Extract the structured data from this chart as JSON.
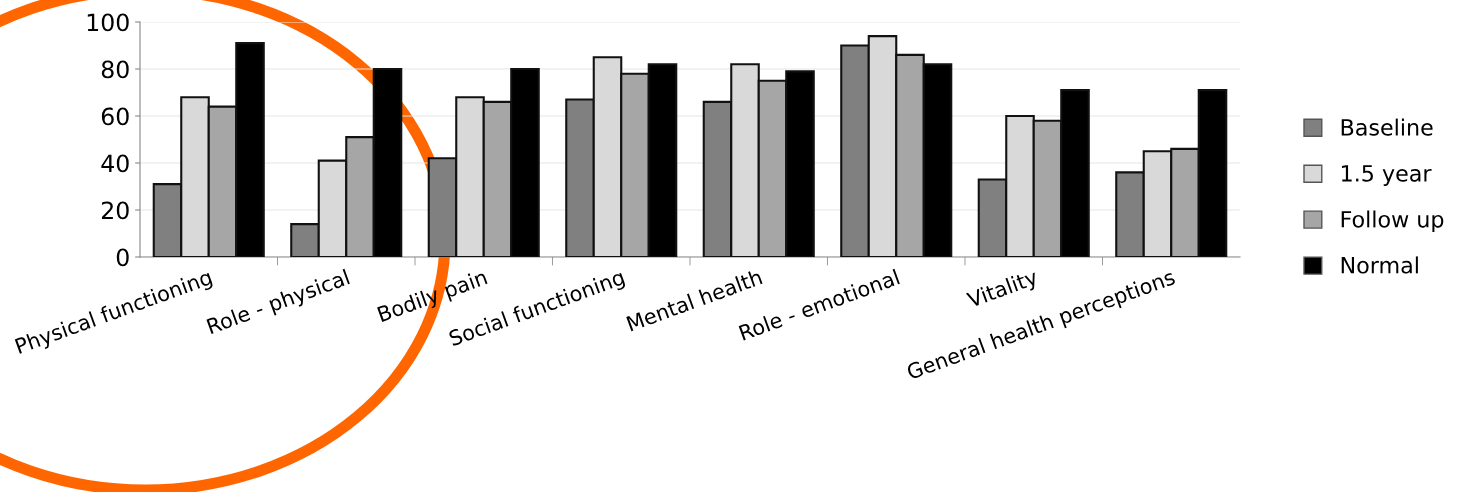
{
  "chart_data": {
    "type": "bar",
    "categories": [
      "Physical functioning",
      "Role - physical",
      "Bodily pain",
      "Social functioning",
      "Mental health",
      "Role - emotional",
      "Vitality",
      "General health perceptions"
    ],
    "series": [
      {
        "name": "Baseline",
        "color": "#808080",
        "values": [
          31,
          14,
          42,
          67,
          66,
          90,
          33,
          36
        ]
      },
      {
        "name": "1.5 year",
        "color": "#d9d9d9",
        "values": [
          68,
          41,
          68,
          85,
          82,
          94,
          60,
          45
        ]
      },
      {
        "name": "Follow up",
        "color": "#a6a6a6",
        "values": [
          64,
          51,
          66,
          78,
          75,
          86,
          58,
          46
        ]
      },
      {
        "name": "Normal",
        "color": "#000000",
        "values": [
          91,
          80,
          80,
          82,
          79,
          82,
          71,
          71
        ]
      }
    ],
    "ylim": [
      0,
      100
    ],
    "yticks": [
      0,
      20,
      40,
      60,
      80,
      100
    ],
    "grid": "y",
    "legend": "right"
  }
}
